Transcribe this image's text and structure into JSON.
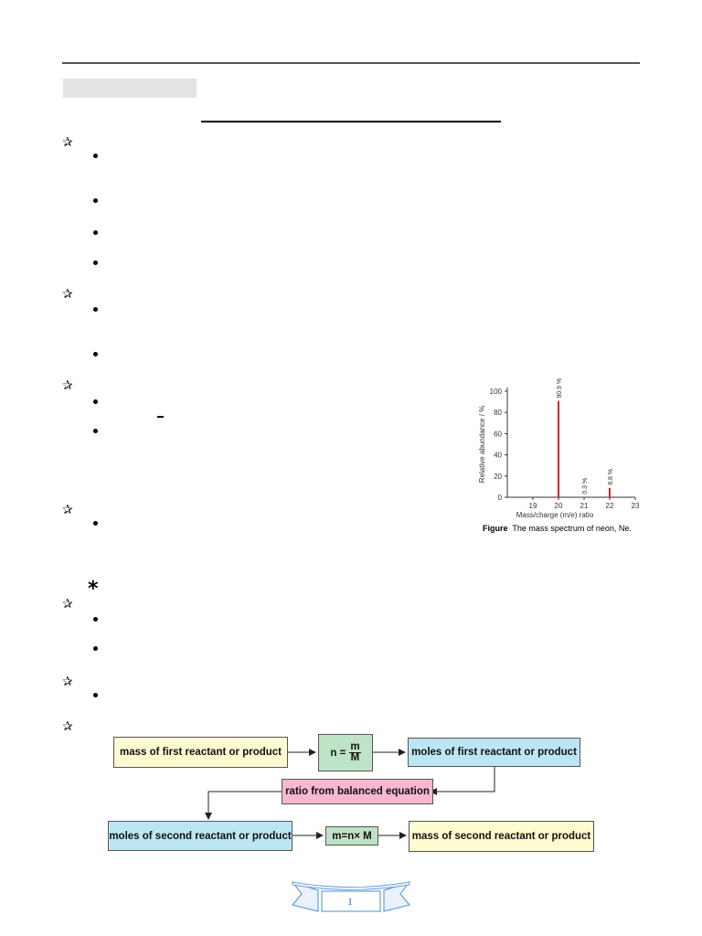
{
  "flowchart": {
    "mass_first": "mass of first reactant or product",
    "n_formula_lhs": "n =",
    "n_formula_num": "m",
    "n_formula_den": "M",
    "moles_first": "moles of first reactant or product",
    "ratio": "ratio from balanced equation",
    "moles_second": "moles of second reactant or product",
    "m_formula": "m=n× M",
    "mass_second": "mass of second reactant or product",
    "colors": {
      "yellow": "#fffbd0",
      "blue": "#bde6f5",
      "green": "#bfe3c6",
      "pink": "#f7b6d2"
    }
  },
  "figure": {
    "caption_label": "Figure",
    "caption_text": "The mass spectrum of neon, Ne."
  },
  "chart_data": {
    "type": "bar",
    "title": "",
    "xlabel": "Mass/charge (m/e) ratio",
    "ylabel": "Relative abundance / %",
    "xlim": [
      18,
      23
    ],
    "ylim": [
      0,
      100
    ],
    "xticks": [
      19,
      20,
      21,
      22,
      23
    ],
    "yticks": [
      0,
      20,
      40,
      60,
      80,
      100
    ],
    "x": [
      20,
      21,
      22
    ],
    "values": [
      90.9,
      0.3,
      8.8
    ],
    "labels": [
      "90.9 %",
      "0.3 %",
      "8.8 %"
    ],
    "bar_color": "#d6202a"
  },
  "footer": {
    "page_number": "1"
  }
}
